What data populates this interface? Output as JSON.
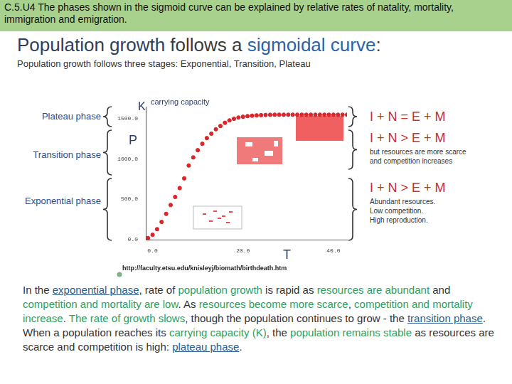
{
  "banner": "C.5.U4 The phases shown in the sigmoid curve can be explained by relative rates of natality, mortality, immigration and emigration.",
  "title": [
    {
      "text": "Population growth",
      "style": "dark"
    },
    {
      "text": " follows a ",
      "style": "grey"
    },
    {
      "text": "sigmoidal curve",
      "style": "blue"
    },
    {
      "text": ":",
      "style": "grey"
    }
  ],
  "subtitle": "Population growth follows three stages: Exponential, Transition, Plateau",
  "phases": [
    "Plateau phase",
    "Transition phase",
    "Exponential phase"
  ],
  "equations": [
    {
      "text": "I + N = E + M",
      "notes": []
    },
    {
      "text": "I + N > E + M",
      "notes": [
        "but resources are more scarce",
        "and competition increases"
      ]
    },
    {
      "text": "I + N > E + M",
      "notes": [
        "Abundant resources.",
        "Low competition.",
        "High reproduction."
      ]
    }
  ],
  "source": "http://faculty.etsu.edu/knisleyj/biomath/birthdeath.htm",
  "paragraph": [
    {
      "text": "In the ",
      "style": "plain"
    },
    {
      "text": "exponential phase",
      "style": "link"
    },
    {
      "text": ", rate of ",
      "style": "plain"
    },
    {
      "text": "population growth",
      "style": "hl"
    },
    {
      "text": " is rapid as ",
      "style": "plain"
    },
    {
      "text": "resources are abundant",
      "style": "hl"
    },
    {
      "text": " and ",
      "style": "plain"
    },
    {
      "text": "competition and mortality are low",
      "style": "hl"
    },
    {
      "text": ". As ",
      "style": "plain"
    },
    {
      "text": "resources become more scarce",
      "style": "hl"
    },
    {
      "text": ", ",
      "style": "plain"
    },
    {
      "text": "competition and mortality increase",
      "style": "hl"
    },
    {
      "text": ". ",
      "style": "plain"
    },
    {
      "text": "The rate of growth slows",
      "style": "hl"
    },
    {
      "text": ", though the population continues to grow - the ",
      "style": "plain"
    },
    {
      "text": "transition phase",
      "style": "link"
    },
    {
      "text": ". When a population reaches its ",
      "style": "plain"
    },
    {
      "text": "carrying capacity (K)",
      "style": "hl"
    },
    {
      "text": ", the ",
      "style": "plain"
    },
    {
      "text": "population remains stable",
      "style": "hl"
    },
    {
      "text": " as resources are scarce and competition is high: ",
      "style": "plain"
    },
    {
      "text": "plateau phase",
      "style": "link"
    },
    {
      "text": ".",
      "style": "plain"
    }
  ],
  "chart_data": {
    "type": "scatter",
    "xlabel": "T",
    "ylabel": "P",
    "annotations": [
      "K",
      "carrying capacity"
    ],
    "x": [
      -1.5,
      -1,
      0,
      1,
      2,
      3,
      4,
      5,
      6,
      7,
      8,
      9,
      10,
      11,
      12,
      13,
      14,
      15,
      16,
      17,
      18,
      19,
      20,
      21,
      22,
      23,
      24,
      25,
      26,
      27,
      28,
      29,
      30,
      31,
      32,
      33,
      34,
      35,
      36,
      37,
      38,
      39,
      40,
      41,
      42,
      43
    ],
    "values": [
      0,
      20,
      60,
      130,
      220,
      320,
      430,
      530,
      640,
      760,
      920,
      1020,
      1110,
      1190,
      1260,
      1315,
      1370,
      1410,
      1450,
      1480,
      1500,
      1515,
      1525,
      1533,
      1538,
      1542,
      1545,
      1547,
      1549,
      1550,
      1550,
      1550,
      1550,
      1550,
      1550,
      1550,
      1550,
      1550,
      1550,
      1550,
      1550,
      1550,
      1550,
      1550,
      1550,
      1550
    ],
    "color": "#d9262b",
    "marker": "circle",
    "xlim": [
      -1.5,
      43
    ],
    "xticks": [
      {
        "value": 0,
        "label": "0.0"
      },
      {
        "value": 20,
        "label": "20.0"
      },
      {
        "value": 40,
        "label": "40.0"
      }
    ],
    "ylim": [
      0,
      1650
    ],
    "yticks": [
      {
        "value": 0,
        "label": "0.0"
      },
      {
        "value": 500,
        "label": "500.0"
      },
      {
        "value": 1000,
        "label": "1000.0"
      },
      {
        "value": 1500,
        "label": "1500.0"
      }
    ],
    "grid": false
  }
}
